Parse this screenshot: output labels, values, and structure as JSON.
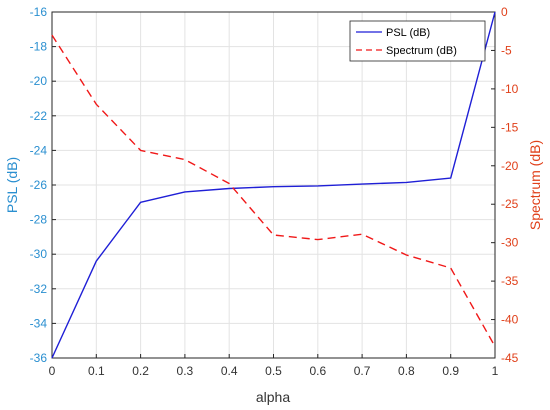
{
  "chart_data": {
    "type": "line",
    "x": [
      0,
      0.1,
      0.2,
      0.3,
      0.4,
      0.5,
      0.6,
      0.7,
      0.8,
      0.9,
      1
    ],
    "xlabel": "alpha",
    "xlim": [
      0,
      1
    ],
    "xticks": [
      "0",
      "0.1",
      "0.2",
      "0.3",
      "0.4",
      "0.5",
      "0.6",
      "0.7",
      "0.8",
      "0.9",
      "1"
    ],
    "grid": true,
    "legend_position": "top-right",
    "left_axis": {
      "label": "PSL (dB)",
      "ylim": [
        -36,
        -16
      ],
      "ticks": [
        "-16",
        "-18",
        "-20",
        "-22",
        "-24",
        "-26",
        "-28",
        "-30",
        "-32",
        "-34",
        "-36"
      ],
      "color": "#2a8fd0"
    },
    "right_axis": {
      "label": "Spectrum (dB)",
      "ylim": [
        -45,
        0
      ],
      "ticks": [
        "0",
        "-5",
        "-10",
        "-15",
        "-20",
        "-25",
        "-30",
        "-35",
        "-40",
        "-45"
      ],
      "color": "#e0401a"
    },
    "series": [
      {
        "name": "PSL (dB)",
        "axis": "left",
        "color": "#1f1fd6",
        "style": "solid",
        "values": [
          -36,
          -30.4,
          -27.0,
          -26.4,
          -26.2,
          -26.1,
          -26.05,
          -25.95,
          -25.85,
          -25.6,
          -16
        ]
      },
      {
        "name": "Spectrum (dB)",
        "axis": "right",
        "color": "#f01818",
        "style": "dashed",
        "values": [
          -3,
          -12,
          -18,
          -19.2,
          -22.3,
          -29,
          -29.6,
          -28.9,
          -31.6,
          -33.3,
          -43.5
        ]
      }
    ]
  }
}
